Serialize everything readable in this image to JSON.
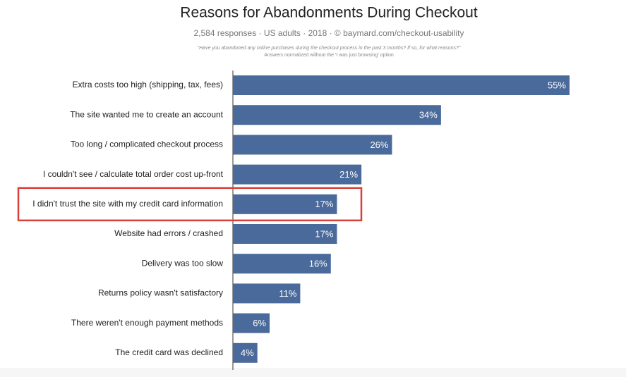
{
  "chart_data": {
    "type": "barh",
    "title": "Reasons for Abandonments During Checkout",
    "subtitle": "2,584 responses · US adults · 2018 · © baymard.com/checkout-usability",
    "notes": [
      "\"Have you abandoned any online purchases during the checkout process in the past 3 months? If so, for what reasons?\"",
      "Answers normalized without the 'I was just browsing' option"
    ],
    "categories": [
      "Extra costs too high (shipping, tax, fees)",
      "The site wanted me to create an account",
      "Too long / complicated checkout process",
      "I couldn't see / calculate total order cost up-front",
      "I didn't trust the site with my credit card information",
      "Website had errors / crashed",
      "Delivery was too slow",
      "Returns policy wasn't satisfactory",
      "There weren't enough payment methods",
      "The credit card was declined"
    ],
    "values": [
      55,
      34,
      26,
      21,
      17,
      17,
      16,
      11,
      6,
      4
    ],
    "value_labels": [
      "55%",
      "34%",
      "26%",
      "21%",
      "17%",
      "17%",
      "16%",
      "11%",
      "6%",
      "4%"
    ],
    "color": "#4a6a9b",
    "xlim": [
      0,
      55
    ],
    "highlight": 4,
    "highlight_color": "#d9403a"
  }
}
